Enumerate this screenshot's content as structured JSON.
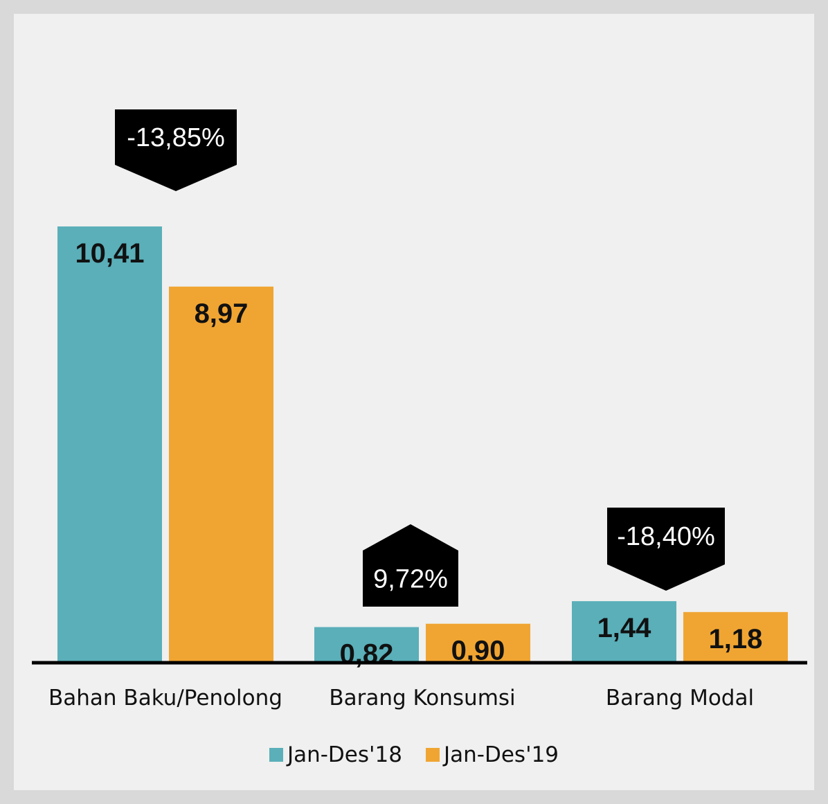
{
  "chart_data": {
    "type": "bar",
    "categories": [
      "Bahan Baku/Penolong",
      "Barang Konsumsi",
      "Barang Modal"
    ],
    "series": [
      {
        "name": "Jan-Des'18",
        "color": "#5aafb9",
        "values": [
          10.41,
          0.82,
          1.44
        ],
        "labels": [
          "10,41",
          "0,82",
          "1,44"
        ]
      },
      {
        "name": "Jan-Des'19",
        "color": "#f0a532",
        "values": [
          8.97,
          0.9,
          1.18
        ],
        "labels": [
          "8,97",
          "0,90",
          "1,18"
        ]
      }
    ],
    "annotations": [
      {
        "category": "Bahan Baku/Penolong",
        "text": "-13,85%",
        "direction": "down"
      },
      {
        "category": "Barang Konsumsi",
        "text": "9,72%",
        "direction": "up"
      },
      {
        "category": "Barang Modal",
        "text": "-18,40%",
        "direction": "down"
      }
    ],
    "ylim": [
      0,
      10.41
    ],
    "grid": false,
    "legend_position": "bottom",
    "colors": {
      "axis": "#000000",
      "callout": "#000000",
      "background": "#eff0ef",
      "frame": "#d9d9d9"
    }
  }
}
